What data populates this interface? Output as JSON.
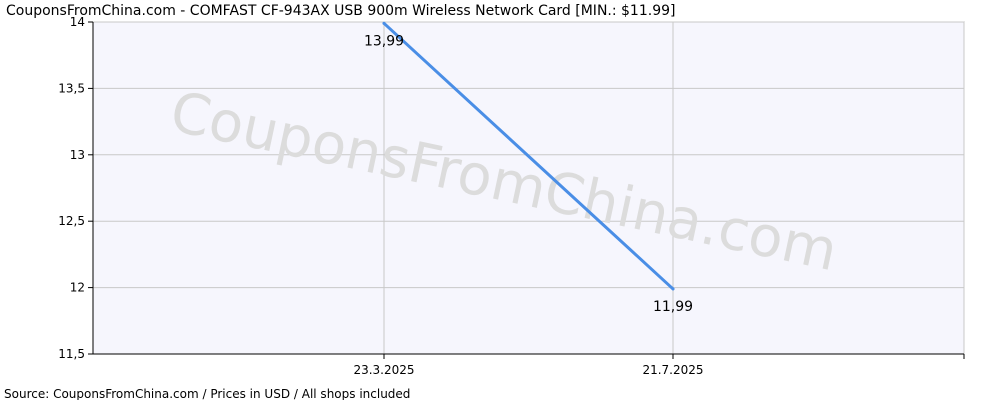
{
  "chart_data": {
    "type": "line",
    "title": "CouponsFromChina.com - COMFAST CF-943AX USB 900m Wireless Network Card [MIN.: $11.99]",
    "x": [
      "23.3.2025",
      "21.7.2025"
    ],
    "series": [
      {
        "values": [
          13.99,
          11.99
        ],
        "labels": [
          "13,99",
          "11,99"
        ]
      }
    ],
    "ylim": [
      11.5,
      14
    ],
    "yticks": [
      11.5,
      12,
      12.5,
      13,
      13.5,
      14
    ],
    "ytick_labels": [
      "11,5",
      "12",
      "12,5",
      "13",
      "13,5",
      "14"
    ],
    "xtick_labels": [
      "23.3.2025",
      "21.7.2025"
    ],
    "grid": true,
    "watermark": "CouponsFromChina.com",
    "footer": "Source: CouponsFromChina.com / Prices in USD / All shops included",
    "colors": {
      "line": "#4a8ee6",
      "plot_background": "#f6f6fd",
      "grid": "#c8c8c8",
      "axis": "#000000",
      "watermark": "#dcdcdc"
    }
  }
}
